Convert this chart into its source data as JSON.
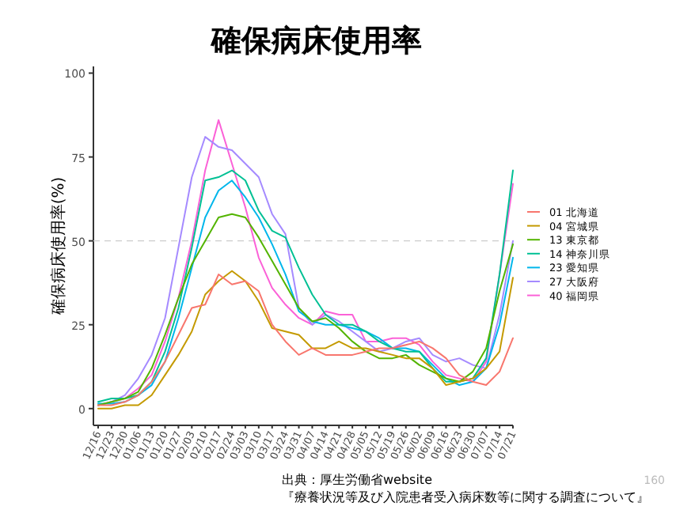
{
  "chart_data": {
    "type": "line",
    "title": "確保病床使用率",
    "ylabel": "確保病床使用率(%)",
    "categories": [
      "12/16",
      "12/23",
      "12/30",
      "01/06",
      "01/13",
      "01/20",
      "01/27",
      "02/03",
      "02/10",
      "02/17",
      "02/24",
      "03/03",
      "03/10",
      "03/17",
      "03/24",
      "03/31",
      "04/07",
      "04/14",
      "04/21",
      "04/28",
      "05/05",
      "05/12",
      "05/19",
      "05/26",
      "06/02",
      "06/09",
      "06/16",
      "06/23",
      "06/30",
      "07/07",
      "07/14",
      "07/21"
    ],
    "series": [
      {
        "name": "01 北海道",
        "color": "#f8766d",
        "values": [
          1,
          1,
          2,
          4,
          8,
          14,
          22,
          30,
          31,
          40,
          37,
          38,
          35,
          25,
          20,
          16,
          18,
          16,
          16,
          16,
          17,
          18,
          18,
          19,
          20,
          18,
          15,
          10,
          8,
          7,
          11,
          21
        ]
      },
      {
        "name": "04 宮城県",
        "color": "#c49a00",
        "values": [
          0,
          0,
          1,
          1,
          4,
          10,
          16,
          23,
          34,
          38,
          41,
          38,
          32,
          24,
          23,
          22,
          18,
          18,
          20,
          18,
          18,
          17,
          16,
          15,
          15,
          12,
          7,
          8,
          9,
          12,
          17,
          39
        ]
      },
      {
        "name": "13 東京都",
        "color": "#53b400",
        "values": [
          1,
          2,
          3,
          5,
          12,
          22,
          33,
          43,
          50,
          57,
          58,
          57,
          51,
          44,
          37,
          30,
          26,
          27,
          24,
          20,
          17,
          15,
          15,
          16,
          13,
          11,
          9,
          8,
          11,
          18,
          35,
          49
        ]
      },
      {
        "name": "14 神奈川県",
        "color": "#00c094",
        "values": [
          2,
          3,
          3,
          4,
          8,
          17,
          30,
          48,
          68,
          69,
          71,
          68,
          59,
          53,
          51,
          42,
          34,
          28,
          25,
          25,
          23,
          20,
          18,
          17,
          17,
          12,
          8,
          8,
          9,
          15,
          40,
          71
        ]
      },
      {
        "name": "23 愛知県",
        "color": "#00b6eb",
        "values": [
          1.5,
          1.5,
          2,
          4,
          7,
          14,
          27,
          42,
          57,
          65,
          68,
          63,
          57,
          49,
          40,
          29,
          26,
          25,
          25,
          24,
          23,
          21,
          18,
          18,
          17,
          13,
          9,
          7,
          8,
          12,
          25,
          45
        ]
      },
      {
        "name": "27 大阪府",
        "color": "#a58aff",
        "values": [
          1,
          2,
          4,
          9,
          16,
          27,
          48,
          69,
          81,
          78,
          77,
          73,
          69,
          58,
          52,
          30,
          25,
          28,
          26,
          23,
          20,
          17,
          18,
          20,
          21,
          16,
          14,
          15,
          13,
          12,
          28,
          50
        ]
      },
      {
        "name": "40 福岡県",
        "color": "#fb61d7",
        "values": [
          1,
          2,
          3,
          6,
          10,
          20,
          33,
          50,
          71,
          86,
          73,
          60,
          45,
          36,
          31,
          27,
          25,
          29,
          28,
          28,
          20,
          20,
          21,
          21,
          19,
          14,
          10,
          9,
          8,
          14,
          40,
          67
        ]
      }
    ],
    "ylim": [
      -5,
      102
    ],
    "yticks": [
      0,
      25,
      50,
      75,
      100
    ],
    "legend": "right",
    "ref_lines": [
      {
        "axis": "y",
        "value": 50,
        "color": "#cccccc",
        "line_style": "dashed"
      }
    ],
    "annotations": [
      "出典：厚生労働省website",
      "『療養状況等及び入院患者受入病床数等に関する調査について』",
      "160"
    ]
  }
}
